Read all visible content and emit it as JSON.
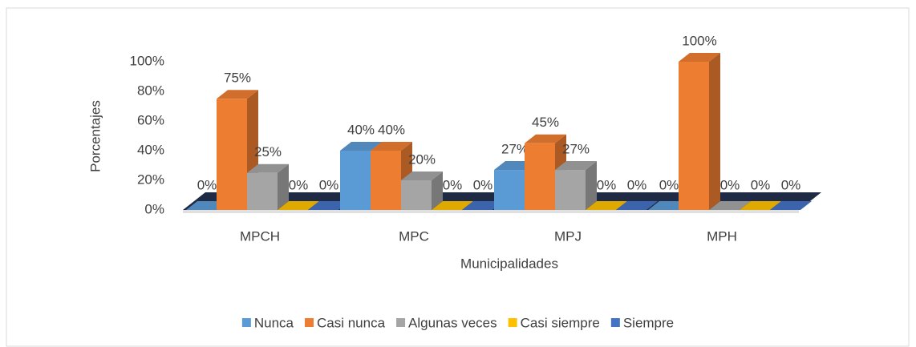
{
  "chart_data": {
    "type": "bar3d",
    "x_label": "Municipalidades",
    "y_label": "Porcentajes",
    "categories": [
      "MPCH",
      "MPC",
      "MPJ",
      "MPH"
    ],
    "series": [
      {
        "name": "Nunca",
        "color": "#5b9bd5",
        "values": [
          0,
          40,
          27,
          0
        ],
        "value_labels": [
          "0%",
          "40%",
          "27%",
          "0%"
        ]
      },
      {
        "name": "Casi nunca",
        "color": "#ed7d31",
        "values": [
          75,
          40,
          45,
          100
        ],
        "value_labels": [
          "75%",
          "40%",
          "45%",
          "100%"
        ]
      },
      {
        "name": "Algunas veces",
        "color": "#a5a5a5",
        "values": [
          25,
          20,
          27,
          0
        ],
        "value_labels": [
          "25%",
          "20%",
          "27%",
          "0%"
        ]
      },
      {
        "name": "Casi siempre",
        "color": "#ffc000",
        "values": [
          0,
          0,
          0,
          0
        ],
        "value_labels": [
          "0%",
          "0%",
          "0%",
          "0%"
        ]
      },
      {
        "name": "Siempre",
        "color": "#4472c4",
        "values": [
          0,
          0,
          0,
          0
        ],
        "value_labels": [
          "0%",
          "0%",
          "0%",
          "0%"
        ]
      }
    ],
    "ylim": [
      0,
      100
    ],
    "yticks": [
      {
        "value": 0,
        "label": "0%"
      },
      {
        "value": 20,
        "label": "20%"
      },
      {
        "value": 40,
        "label": "40%"
      },
      {
        "value": 60,
        "label": "60%"
      },
      {
        "value": 80,
        "label": "80%"
      },
      {
        "value": 100,
        "label": "100%"
      }
    ],
    "legend": "bottom"
  }
}
